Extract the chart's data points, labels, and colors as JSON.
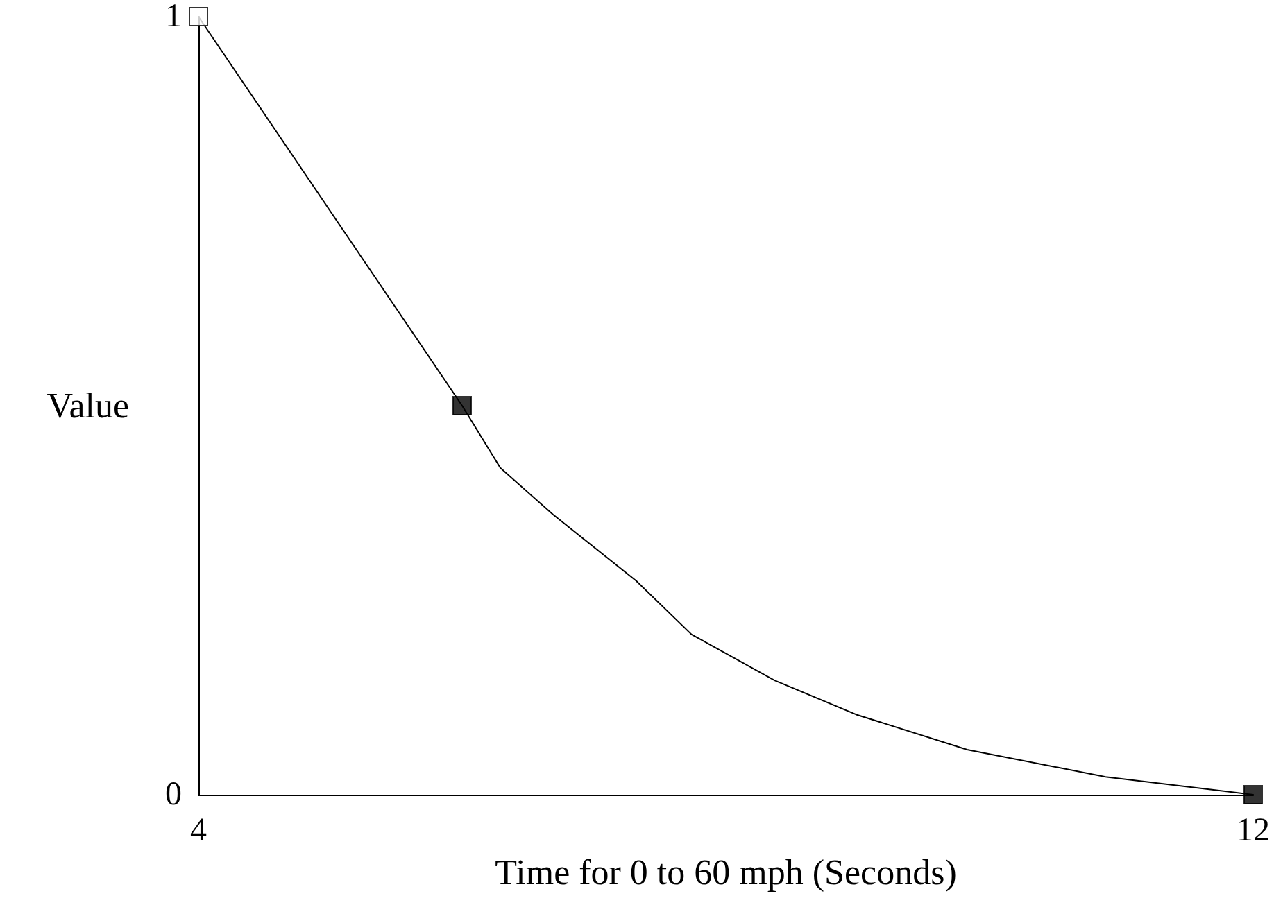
{
  "chart_data": {
    "type": "line",
    "xlabel": "Time for 0 to 60 mph (Seconds)",
    "ylabel": "Value",
    "xlim": [
      4,
      12
    ],
    "xticks": [
      4,
      12
    ],
    "ylim": [
      0,
      1
    ],
    "yticks": [
      0,
      1
    ],
    "grid": false,
    "series": [
      {
        "color": "#000000",
        "marker": "none",
        "line_style": "solid",
        "x": [
          4,
          6,
          6.29,
          6.69,
          7.32,
          7.74,
          8.37,
          8.99,
          9.83,
          10.88,
          12
        ],
        "values": [
          1,
          0.5,
          0.42,
          0.36,
          0.275,
          0.206,
          0.147,
          0.103,
          0.058,
          0.023,
          0
        ]
      },
      {
        "type": "scatter",
        "marker": "square",
        "x": [
          4,
          6,
          12
        ],
        "values": [
          1,
          0.5,
          0
        ],
        "colors": [
          "#ffffff",
          "#000000",
          "#000000"
        ]
      }
    ]
  }
}
